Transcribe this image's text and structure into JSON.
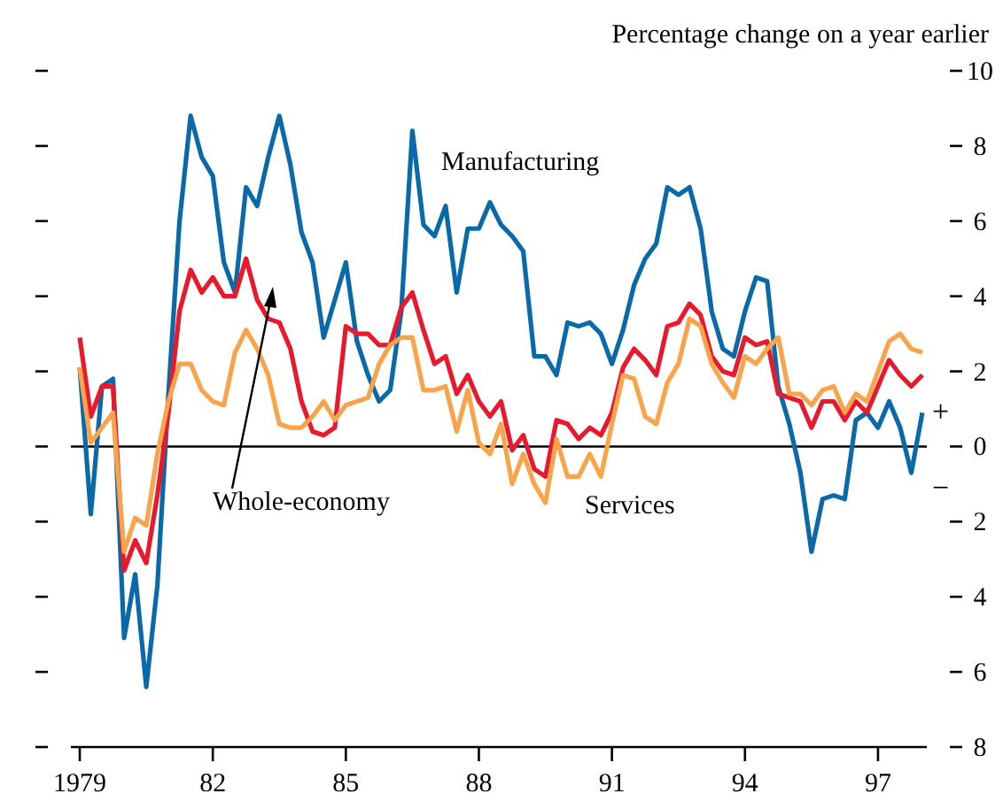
{
  "chart_data": {
    "type": "line",
    "ylabel": "Percentage change on a year earlier",
    "x": [
      1979,
      1979.25,
      1979.5,
      1979.75,
      1980,
      1980.25,
      1980.5,
      1980.75,
      1981,
      1981.25,
      1981.5,
      1981.75,
      1982,
      1982.25,
      1982.5,
      1982.75,
      1983,
      1983.25,
      1983.5,
      1983.75,
      1984,
      1984.25,
      1984.5,
      1984.75,
      1985,
      1985.25,
      1985.5,
      1985.75,
      1986,
      1986.25,
      1986.5,
      1986.75,
      1987,
      1987.25,
      1987.5,
      1987.75,
      1988,
      1988.25,
      1988.5,
      1988.75,
      1989,
      1989.25,
      1989.5,
      1989.75,
      1990,
      1990.25,
      1990.5,
      1990.75,
      1991,
      1991.25,
      1991.5,
      1991.75,
      1992,
      1992.25,
      1992.5,
      1992.75,
      1993,
      1993.25,
      1993.5,
      1993.75,
      1994,
      1994.25,
      1994.5,
      1994.75,
      1995,
      1995.25,
      1995.5,
      1995.75,
      1996,
      1996.25,
      1996.5,
      1996.75,
      1997,
      1997.25,
      1997.5,
      1997.75,
      1998
    ],
    "series": [
      {
        "name": "Manufacturing",
        "color": "#0a69a8",
        "values": [
          2.1,
          -1.8,
          1.6,
          1.8,
          -5.1,
          -3.4,
          -6.4,
          -3.7,
          1.4,
          6.0,
          8.8,
          7.7,
          7.2,
          4.9,
          4.1,
          6.9,
          6.4,
          7.7,
          8.8,
          7.5,
          5.7,
          4.9,
          2.9,
          3.9,
          4.9,
          2.8,
          1.9,
          1.2,
          1.5,
          3.6,
          8.4,
          5.9,
          5.6,
          6.4,
          4.1,
          5.8,
          5.8,
          6.5,
          5.9,
          5.6,
          5.2,
          2.4,
          2.4,
          1.9,
          3.3,
          3.2,
          3.3,
          3.0,
          2.2,
          3.1,
          4.3,
          5.0,
          5.4,
          6.9,
          6.7,
          6.9,
          5.8,
          3.6,
          2.6,
          2.4,
          3.6,
          4.5,
          4.4,
          1.6,
          0.6,
          -0.7,
          -2.8,
          -1.4,
          -1.3,
          -1.4,
          0.7,
          0.9,
          0.5,
          1.2,
          0.5,
          -0.7,
          0.9
        ]
      },
      {
        "name": "Whole-economy",
        "color": "#e8192c",
        "values": [
          2.9,
          0.8,
          1.6,
          1.6,
          -3.3,
          -2.5,
          -3.1,
          -1.3,
          0.9,
          3.6,
          4.7,
          4.1,
          4.5,
          4.0,
          4.0,
          5.0,
          3.9,
          3.4,
          3.3,
          2.6,
          1.2,
          0.4,
          0.3,
          0.5,
          3.2,
          3.0,
          3.0,
          2.7,
          2.7,
          3.7,
          4.1,
          3.1,
          2.2,
          2.4,
          1.4,
          1.9,
          1.2,
          0.8,
          1.2,
          -0.1,
          0.3,
          -0.6,
          -0.8,
          0.7,
          0.6,
          0.2,
          0.5,
          0.3,
          0.9,
          2.1,
          2.6,
          2.3,
          1.9,
          3.2,
          3.3,
          3.8,
          3.5,
          2.4,
          2.0,
          1.9,
          2.9,
          2.7,
          2.8,
          1.4,
          1.3,
          1.2,
          0.5,
          1.2,
          1.2,
          0.7,
          1.2,
          0.9,
          1.6,
          2.3,
          1.9,
          1.6,
          1.9
        ]
      },
      {
        "name": "Services",
        "color": "#f9a44a",
        "values": [
          2.1,
          0.1,
          0.5,
          0.9,
          -2.8,
          -1.9,
          -2.1,
          -0.2,
          1.2,
          2.2,
          2.2,
          1.5,
          1.2,
          1.1,
          2.5,
          3.1,
          2.6,
          1.9,
          0.6,
          0.5,
          0.5,
          0.8,
          1.2,
          0.7,
          1.1,
          1.2,
          1.3,
          2.2,
          2.7,
          2.9,
          2.9,
          1.5,
          1.5,
          1.6,
          0.4,
          1.5,
          0.1,
          -0.2,
          0.6,
          -1.0,
          -0.2,
          -1.0,
          -1.5,
          0.2,
          -0.8,
          -0.8,
          -0.2,
          -0.8,
          0.6,
          1.9,
          1.8,
          0.8,
          0.6,
          1.7,
          2.2,
          3.4,
          3.2,
          2.2,
          1.7,
          1.3,
          2.4,
          2.2,
          2.6,
          2.9,
          1.4,
          1.4,
          1.1,
          1.5,
          1.6,
          0.9,
          1.4,
          1.2,
          2.0,
          2.8,
          3.0,
          2.6,
          2.5
        ]
      }
    ],
    "xlim": [
      1978.8,
      1998.1
    ],
    "xticks": [
      {
        "value": 1979,
        "label": "1979"
      },
      {
        "value": 1982,
        "label": "82"
      },
      {
        "value": 1985,
        "label": "85"
      },
      {
        "value": 1988,
        "label": "88"
      },
      {
        "value": 1991,
        "label": "91"
      },
      {
        "value": 1994,
        "label": "94"
      },
      {
        "value": 1997,
        "label": "97"
      }
    ],
    "ylim": [
      -8,
      10
    ],
    "yticks": [
      10,
      8,
      6,
      4,
      2,
      0,
      {
        "value": -2,
        "label": "2"
      },
      {
        "value": -4,
        "label": "4"
      },
      {
        "value": -6,
        "label": "6"
      },
      {
        "value": -8,
        "label": "8"
      }
    ],
    "ref_lines": [
      {
        "axis": "y",
        "value": 0,
        "color": "#000000"
      }
    ],
    "annotations": [
      "+",
      "−"
    ]
  }
}
